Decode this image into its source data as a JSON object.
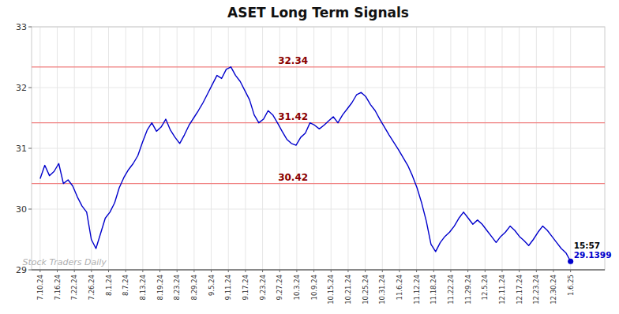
{
  "chart_data": {
    "type": "line",
    "title": "ASET Long Term Signals",
    "color": "#0000cc",
    "grid": true,
    "x": [
      0,
      0.2719,
      0.5439,
      0.8158,
      1.0877,
      1.3596,
      1.6316,
      1.9035,
      2.1754,
      2.4474,
      2.7193,
      2.9912,
      3.2632,
      3.5351,
      3.807,
      4.0789,
      4.3509,
      4.6228,
      4.8947,
      5.1667,
      5.4386,
      5.7105,
      5.9825,
      6.2544,
      6.5263,
      6.7982,
      7.0702,
      7.3421,
      7.614,
      7.886,
      8.1579,
      8.4298,
      8.7018,
      8.9737,
      9.2456,
      9.5175,
      9.7895,
      10.0614,
      10.3333,
      10.6053,
      10.8772,
      11.1491,
      11.4211,
      11.693,
      11.9649,
      12.2368,
      12.5088,
      12.7807,
      13.0526,
      13.3246,
      13.5965,
      13.8684,
      14.1404,
      14.4123,
      14.6842,
      14.9561,
      15.2281,
      15.5,
      15.7719,
      16.0439,
      16.3158,
      16.5877,
      16.8596,
      17.1316,
      17.4035,
      17.6754,
      17.9474,
      18.2193,
      18.4912,
      18.7632,
      19.0351,
      19.307,
      19.5789,
      19.8509,
      20.1228,
      20.3947,
      20.6667,
      20.9386,
      21.2105,
      21.4825,
      21.7544,
      22.0263,
      22.2982,
      22.5702,
      22.8421,
      23.114,
      23.386,
      23.6579,
      23.9298,
      24.2018,
      24.4737,
      24.7456,
      25.0175,
      25.2895,
      25.5614,
      25.8333,
      26.1053,
      26.3772,
      26.6491,
      26.9211,
      27.193,
      27.4649,
      27.7368,
      28.0088,
      28.2807,
      28.5526,
      28.8246,
      29.0965,
      29.3684,
      29.6404,
      29.9123,
      30.1842,
      30.4561,
      30.7281,
      31
    ],
    "values": [
      30.5,
      30.72,
      30.55,
      30.62,
      30.75,
      30.42,
      30.48,
      30.38,
      30.2,
      30.05,
      29.95,
      29.5,
      29.35,
      29.6,
      29.85,
      29.95,
      30.1,
      30.35,
      30.52,
      30.65,
      30.75,
      30.88,
      31.1,
      31.3,
      31.42,
      31.28,
      31.35,
      31.48,
      31.3,
      31.18,
      31.08,
      31.22,
      31.38,
      31.5,
      31.62,
      31.75,
      31.9,
      32.05,
      32.2,
      32.15,
      32.3,
      32.34,
      32.2,
      32.1,
      31.95,
      31.8,
      31.55,
      31.42,
      31.48,
      31.62,
      31.55,
      31.42,
      31.28,
      31.15,
      31.08,
      31.05,
      31.18,
      31.25,
      31.42,
      31.38,
      31.32,
      31.38,
      31.45,
      31.52,
      31.42,
      31.55,
      31.65,
      31.75,
      31.88,
      31.92,
      31.85,
      31.72,
      31.62,
      31.48,
      31.35,
      31.22,
      31.1,
      30.98,
      30.85,
      30.72,
      30.55,
      30.35,
      30.1,
      29.8,
      29.42,
      29.3,
      29.45,
      29.55,
      29.62,
      29.72,
      29.85,
      29.95,
      29.85,
      29.75,
      29.82,
      29.75,
      29.65,
      29.55,
      29.45,
      29.55,
      29.62,
      29.72,
      29.65,
      29.55,
      29.48,
      29.4,
      29.5,
      29.62,
      29.72,
      29.65,
      29.55,
      29.45,
      29.35,
      29.28,
      29.1399
    ],
    "hlines": {
      "values": [
        32.34,
        31.42,
        30.42
      ],
      "color": "#f08080"
    },
    "annotations": [
      "15:57",
      "29.1399",
      "Stock Traders Daily"
    ],
    "xlim": [
      -0.5,
      33
    ],
    "xticks": [
      {
        "value": 0,
        "label": "7.10.24"
      },
      {
        "value": 1,
        "label": "7.16.24"
      },
      {
        "value": 2,
        "label": "7.22.24"
      },
      {
        "value": 3,
        "label": "7.26.24"
      },
      {
        "value": 4,
        "label": "8.1.24"
      },
      {
        "value": 5,
        "label": "8.7.24"
      },
      {
        "value": 6,
        "label": "8.13.24"
      },
      {
        "value": 7,
        "label": "8.19.24"
      },
      {
        "value": 8,
        "label": "8.23.24"
      },
      {
        "value": 9,
        "label": "8.29.24"
      },
      {
        "value": 10,
        "label": "9.5.24"
      },
      {
        "value": 11,
        "label": "9.11.24"
      },
      {
        "value": 12,
        "label": "9.17.24"
      },
      {
        "value": 13,
        "label": "9.23.24"
      },
      {
        "value": 14,
        "label": "9.27.24"
      },
      {
        "value": 15,
        "label": "10.3.24"
      },
      {
        "value": 16,
        "label": "10.9.24"
      },
      {
        "value": 17,
        "label": "10.15.24"
      },
      {
        "value": 18,
        "label": "10.21.24"
      },
      {
        "value": 19,
        "label": "10.25.24"
      },
      {
        "value": 20,
        "label": "10.31.24"
      },
      {
        "value": 21,
        "label": "11.6.24"
      },
      {
        "value": 22,
        "label": "11.12.24"
      },
      {
        "value": 23,
        "label": "11.18.24"
      },
      {
        "value": 24,
        "label": "11.22.24"
      },
      {
        "value": 25,
        "label": "11.29.24"
      },
      {
        "value": 26,
        "label": "12.5.24"
      },
      {
        "value": 27,
        "label": "12.11.24"
      },
      {
        "value": 28,
        "label": "12.17.24"
      },
      {
        "value": 29,
        "label": "12.23.24"
      },
      {
        "value": 30,
        "label": "12.30.24"
      },
      {
        "value": 31,
        "label": "1.6.25"
      }
    ],
    "ylim": [
      29.0,
      33.0
    ],
    "yticks": [
      29,
      30,
      31,
      32,
      33
    ]
  }
}
